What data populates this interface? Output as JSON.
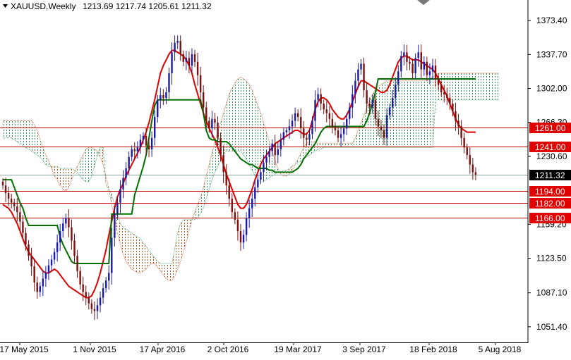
{
  "header": {
    "symbol": "XAUUSD,Weekly",
    "ohlc": "1213.69 1217.74 1205.61 1211.32"
  },
  "colors": {
    "background": "#ffffff",
    "bull": "#1a1aa8",
    "bear": "#7a1010",
    "tenkan": "#e00000",
    "kijun": "#007000",
    "cloud_bull": "#2e9e58",
    "cloud_bear": "#d0491c",
    "level_line": "#c00000",
    "level_bg": "#e00000",
    "price_line": "#8aa5a0",
    "price_bg": "#000000"
  },
  "chart_data": {
    "type": "candlestick",
    "title": "XAUUSD,Weekly",
    "ylim": [
      1035,
      1395
    ],
    "y_ticks": [
      1373.4,
      1337.7,
      1302.0,
      1266.3,
      1230.6,
      1159.2,
      1123.5,
      1087.1,
      1051.4
    ],
    "x_ticks": [
      "17 May 2015",
      "1 Nov 2015",
      "17 Apr 2016",
      "2 Oct 2016",
      "19 Mar 2017",
      "3 Sep 2017",
      "18 Feb 2018",
      "5 Aug 2018"
    ],
    "current_price": 1211.32,
    "levels": [
      1261.0,
      1241.0,
      1194.0,
      1182.0,
      1166.0
    ],
    "series": [
      {
        "kind": "candles",
        "close": [
          1200,
          1192,
          1186,
          1182,
          1178,
          1172,
          1162,
          1150,
          1138,
          1126,
          1115,
          1098,
          1088,
          1094,
          1102,
          1108,
          1116,
          1122,
          1130,
          1140,
          1152,
          1160,
          1166,
          1156,
          1142,
          1126,
          1110,
          1096,
          1088,
          1082,
          1076,
          1070,
          1068,
          1074,
          1082,
          1092,
          1100,
          1108,
          1145,
          1170,
          1182,
          1196,
          1208,
          1218,
          1230,
          1238,
          1236,
          1240,
          1248,
          1252,
          1242,
          1238,
          1250,
          1272,
          1290,
          1295,
          1292,
          1298,
          1318,
          1340,
          1350,
          1352,
          1338,
          1330,
          1334,
          1326,
          1338,
          1330,
          1316,
          1298,
          1282,
          1268,
          1260,
          1270,
          1266,
          1250,
          1232,
          1214,
          1200,
          1186,
          1172,
          1164,
          1152,
          1140,
          1148,
          1166,
          1176,
          1186,
          1198,
          1206,
          1214,
          1224,
          1230,
          1236,
          1244,
          1232,
          1238,
          1248,
          1256,
          1258,
          1262,
          1268,
          1276,
          1272,
          1260,
          1250,
          1248,
          1254,
          1268,
          1290,
          1296,
          1286,
          1280,
          1276,
          1270,
          1262,
          1258,
          1250,
          1254,
          1260,
          1270,
          1282,
          1296,
          1310,
          1322,
          1328,
          1300,
          1286,
          1282,
          1290,
          1270,
          1262,
          1258,
          1250,
          1274,
          1282,
          1292,
          1306,
          1320,
          1336,
          1340,
          1330,
          1328,
          1318,
          1334,
          1340,
          1322,
          1330,
          1316,
          1320,
          1326,
          1312,
          1306,
          1298,
          1296,
          1292,
          1286,
          1278,
          1268,
          1262,
          1250,
          1240,
          1232,
          1222,
          1214,
          1211.32
        ]
      },
      {
        "name": "",
        "kind": "tenkan",
        "values": [
          1180,
          1178,
          1176,
          1172,
          1166,
          1160,
          1152,
          1144,
          1136,
          1130,
          1126,
          1122,
          1118,
          1114,
          1110,
          1108,
          1108,
          1110,
          1112,
          1110,
          1106,
          1102,
          1098,
          1094,
          1092,
          1090,
          1088,
          1086,
          1084,
          1082,
          1082,
          1084,
          1090,
          1098,
          1108,
          1120,
          1132,
          1148,
          1162,
          1176,
          1188,
          1196,
          1202,
          1210,
          1216,
          1222,
          1228,
          1234,
          1240,
          1248,
          1256,
          1266,
          1278,
          1290,
          1304,
          1318,
          1326,
          1332,
          1338,
          1342,
          1342,
          1340,
          1338,
          1336,
          1332,
          1326,
          1318,
          1306,
          1296,
          1286,
          1276,
          1268,
          1260,
          1254,
          1248,
          1240,
          1232,
          1222,
          1212,
          1204,
          1196,
          1188,
          1180,
          1176,
          1176,
          1180,
          1188,
          1196,
          1206,
          1214,
          1222,
          1228,
          1232,
          1236,
          1240,
          1244,
          1246,
          1248,
          1250,
          1252,
          1254,
          1256,
          1258,
          1258,
          1256,
          1254,
          1254,
          1258,
          1268,
          1280,
          1288,
          1292,
          1292,
          1290,
          1286,
          1280,
          1276,
          1272,
          1270,
          1270,
          1274,
          1280,
          1288,
          1296,
          1304,
          1310,
          1310,
          1308,
          1306,
          1304,
          1302,
          1300,
          1298,
          1298,
          1300,
          1306,
          1314,
          1322,
          1330,
          1334,
          1336,
          1336,
          1334,
          1332,
          1332,
          1332,
          1330,
          1328,
          1326,
          1324,
          1322,
          1318,
          1312,
          1306,
          1300,
          1294,
          1286,
          1278,
          1270,
          1264,
          1260,
          1258,
          1256,
          1256,
          1256,
          1256
        ]
      },
      {
        "name": "",
        "kind": "kijun",
        "values": [
          1206,
          1206,
          1206,
          1206,
          1198,
          1190,
          1182,
          1176,
          1166,
          1158,
          1158,
          1158,
          1158,
          1158,
          1158,
          1158,
          1158,
          1158,
          1158,
          1158,
          1146,
          1138,
          1132,
          1126,
          1120,
          1118,
          1118,
          1118,
          1118,
          1118,
          1118,
          1118,
          1118,
          1118,
          1118,
          1118,
          1118,
          1118,
          1170,
          1170,
          1170,
          1170,
          1170,
          1170,
          1170,
          1170,
          1190,
          1200,
          1210,
          1220,
          1232,
          1250,
          1268,
          1284,
          1290,
          1290,
          1290,
          1290,
          1290,
          1290,
          1290,
          1290,
          1290,
          1290,
          1290,
          1290,
          1290,
          1290,
          1290,
          1290,
          1276,
          1258,
          1250,
          1248,
          1248,
          1246,
          1246,
          1246,
          1246,
          1244,
          1240,
          1236,
          1232,
          1228,
          1226,
          1224,
          1222,
          1222,
          1220,
          1218,
          1218,
          1218,
          1218,
          1216,
          1216,
          1214,
          1214,
          1214,
          1214,
          1214,
          1214,
          1214,
          1216,
          1218,
          1222,
          1228,
          1232,
          1236,
          1240,
          1244,
          1250,
          1256,
          1260,
          1262,
          1262,
          1262,
          1262,
          1262,
          1262,
          1262,
          1262,
          1262,
          1262,
          1262,
          1262,
          1262,
          1262,
          1268,
          1276,
          1286,
          1298,
          1312,
          1312,
          1312,
          1312,
          1312,
          1312,
          1312,
          1312,
          1312,
          1312,
          1312,
          1312,
          1312,
          1312,
          1312,
          1312,
          1312,
          1312,
          1312,
          1312,
          1312,
          1312,
          1312,
          1312,
          1312,
          1312,
          1312,
          1312,
          1312,
          1312,
          1312,
          1312,
          1312,
          1312,
          1312
        ]
      }
    ],
    "cloud": {
      "senkou_a": [
        1268,
        1268,
        1268,
        1268,
        1268,
        1268,
        1268,
        1268,
        1268,
        1268,
        1268,
        1264,
        1258,
        1248,
        1240,
        1232,
        1226,
        1218,
        1210,
        1206,
        1200,
        1196,
        1194,
        1198,
        1206,
        1214,
        1220,
        1226,
        1232,
        1238,
        1240,
        1240,
        1238,
        1236,
        1230,
        1222,
        1210,
        1196,
        1180,
        1166,
        1150,
        1138,
        1128,
        1120,
        1116,
        1112,
        1110,
        1108,
        1108,
        1110,
        1112,
        1116,
        1118,
        1118,
        1114,
        1110,
        1106,
        1102,
        1100,
        1100,
        1104,
        1112,
        1120,
        1130,
        1140,
        1152,
        1164,
        1172,
        1180,
        1188,
        1198,
        1210,
        1222,
        1234,
        1246,
        1256,
        1266,
        1276,
        1286,
        1296,
        1302,
        1308,
        1312,
        1314,
        1312,
        1310,
        1306,
        1300,
        1292,
        1284,
        1276,
        1266,
        1256,
        1246,
        1236,
        1226,
        1218,
        1212,
        1210,
        1210,
        1212,
        1216,
        1222,
        1228,
        1234,
        1240,
        1244,
        1246,
        1246,
        1246,
        1244,
        1244,
        1244,
        1244,
        1244,
        1244,
        1244,
        1244,
        1244,
        1244,
        1244,
        1244,
        1244,
        1250,
        1258,
        1266,
        1274,
        1282,
        1290,
        1296,
        1300,
        1304,
        1306,
        1308,
        1310,
        1310,
        1310,
        1310,
        1310,
        1310,
        1310,
        1310,
        1310,
        1310,
        1310,
        1310,
        1310,
        1310,
        1310,
        1312,
        1314,
        1316,
        1318,
        1318,
        1318,
        1318,
        1318,
        1318,
        1318,
        1318,
        1318,
        1318,
        1318,
        1318,
        1318,
        1318,
        1318,
        1318,
        1318,
        1318,
        1318,
        1318,
        1318,
        1318
      ],
      "senkou_b": [
        1250,
        1250,
        1250,
        1250,
        1248,
        1246,
        1244,
        1242,
        1240,
        1238,
        1236,
        1234,
        1232,
        1230,
        1226,
        1222,
        1220,
        1220,
        1220,
        1220,
        1218,
        1218,
        1218,
        1218,
        1218,
        1216,
        1214,
        1210,
        1206,
        1204,
        1204,
        1210,
        1220,
        1232,
        1240,
        1240,
        1200,
        1196,
        1190,
        1180,
        1170,
        1160,
        1156,
        1154,
        1152,
        1150,
        1148,
        1146,
        1144,
        1140,
        1136,
        1132,
        1128,
        1124,
        1120,
        1118,
        1118,
        1118,
        1118,
        1118,
        1134,
        1150,
        1160,
        1164,
        1164,
        1164,
        1164,
        1164,
        1166,
        1170,
        1176,
        1186,
        1196,
        1206,
        1214,
        1220,
        1226,
        1232,
        1236,
        1236,
        1236,
        1236,
        1236,
        1236,
        1232,
        1228,
        1222,
        1216,
        1210,
        1206,
        1204,
        1204,
        1206,
        1208,
        1210,
        1212,
        1214,
        1214,
        1216,
        1216,
        1218,
        1220,
        1222,
        1224,
        1226,
        1228,
        1230,
        1232,
        1234,
        1236,
        1238,
        1238,
        1240,
        1240,
        1240,
        1240,
        1240,
        1240,
        1240,
        1240,
        1240,
        1240,
        1240,
        1240,
        1240,
        1240,
        1240,
        1240,
        1240,
        1240,
        1240,
        1240,
        1240,
        1240,
        1240,
        1240,
        1240,
        1240,
        1240,
        1240,
        1240,
        1240,
        1240,
        1240,
        1240,
        1240,
        1240,
        1240,
        1240,
        1240,
        1240,
        1290,
        1290,
        1290,
        1290,
        1290,
        1290,
        1290,
        1290,
        1290,
        1290,
        1290,
        1290,
        1290,
        1290,
        1290,
        1290,
        1290,
        1290,
        1290,
        1290,
        1290,
        1290,
        1290
      ]
    }
  }
}
